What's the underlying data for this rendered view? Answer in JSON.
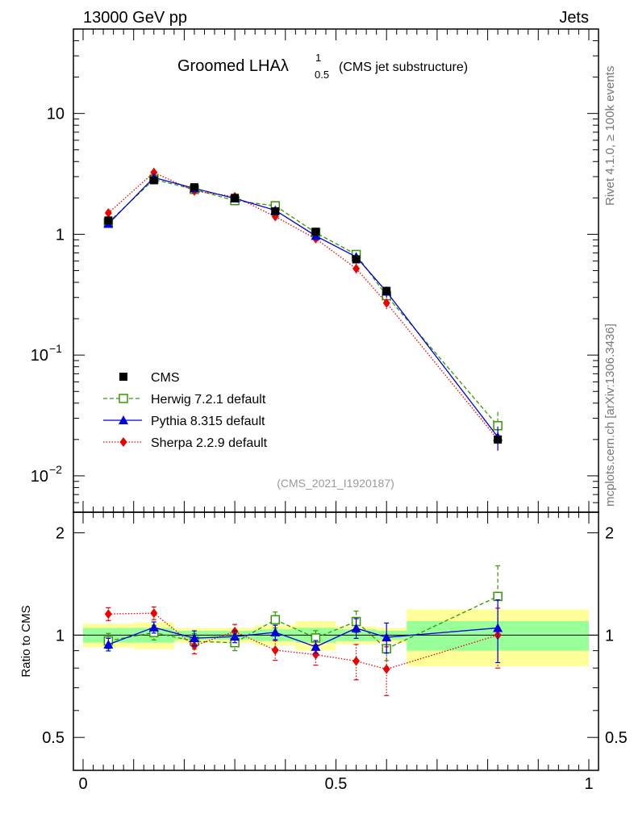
{
  "header": {
    "left": "13000 GeV pp",
    "right": "Jets"
  },
  "side_labels": {
    "rivet": "Rivet 4.1.0, ≥ 100k events",
    "mcplots": "mcplots.cern.ch [arXiv:1306.3436]"
  },
  "colors": {
    "cms": "#000000",
    "herwig": "#339900",
    "pythia": "#0000dd",
    "sherpa": "#ee0000",
    "band_inner": "#99ff99",
    "band_outer": "#ffff99"
  },
  "chart_data": {
    "type": "line",
    "title": "Groomed LHA",
    "title_symbol": "λ",
    "title_sup": "1",
    "title_sub": "0.5",
    "subtitle": "(CMS jet substructure)",
    "analysis_id": "(CMS_2021_I1920187)",
    "xlabel": "",
    "ylabel_main": "",
    "ylabel_ratio": "Ratio to CMS",
    "xlim": [
      0,
      1
    ],
    "ylim_main": [
      0.005,
      50
    ],
    "yscale_main": "log",
    "ylim_ratio": [
      0.4,
      2.3
    ],
    "yscale_ratio": "log",
    "x_ticks": [
      {
        "v": 0,
        "label": "0"
      },
      {
        "v": 0.5,
        "label": "0.5"
      },
      {
        "v": 1,
        "label": "1"
      }
    ],
    "main_y_ticks": [
      {
        "v": 10,
        "label": "10"
      },
      {
        "v": 1,
        "label": "1"
      },
      {
        "v": 0.1,
        "base": "10",
        "exp": "−1"
      },
      {
        "v": 0.01,
        "base": "10",
        "exp": "−2"
      }
    ],
    "ratio_y_ticks": [
      {
        "v": 0.5,
        "label": "0.5"
      },
      {
        "v": 1,
        "label": "1"
      },
      {
        "v": 2,
        "label": "2"
      }
    ],
    "x": [
      0.05,
      0.14,
      0.22,
      0.3,
      0.38,
      0.46,
      0.54,
      0.6,
      0.82
    ],
    "bins": [
      [
        0.0,
        0.1
      ],
      [
        0.1,
        0.18
      ],
      [
        0.18,
        0.26
      ],
      [
        0.26,
        0.34
      ],
      [
        0.34,
        0.42
      ],
      [
        0.42,
        0.5
      ],
      [
        0.5,
        0.58
      ],
      [
        0.58,
        0.64
      ],
      [
        0.64,
        1.0
      ]
    ],
    "band_outer": [
      0.08,
      0.09,
      0.05,
      0.05,
      0.07,
      0.1,
      0.06,
      0.05,
      0.19
    ],
    "band_inner": [
      0.05,
      0.05,
      0.03,
      0.03,
      0.04,
      0.05,
      0.04,
      0.03,
      0.1
    ],
    "series": [
      {
        "name": "CMS",
        "key": "cms",
        "values": [
          1.3,
          2.8,
          2.45,
          2.0,
          1.55,
          1.05,
          0.62,
          0.34,
          0.02
        ]
      },
      {
        "name": "Herwig 7.2.1 default",
        "key": "herwig",
        "values": [
          1.25,
          2.85,
          2.35,
          1.9,
          1.72,
          1.03,
          0.68,
          0.31,
          0.026
        ],
        "ratio_err": [
          0.05,
          0.05,
          0.05,
          0.05,
          0.06,
          0.05,
          0.08,
          0.07,
          0.3
        ]
      },
      {
        "name": "Pythia 8.315 default",
        "key": "pythia",
        "values": [
          1.22,
          2.95,
          2.4,
          1.98,
          1.58,
          0.97,
          0.65,
          0.335,
          0.021
        ],
        "ratio_err": [
          0.04,
          0.04,
          0.05,
          0.04,
          0.05,
          0.04,
          0.07,
          0.1,
          0.22
        ]
      },
      {
        "name": "Sherpa 2.2.9 default",
        "key": "sherpa",
        "values": [
          1.5,
          3.25,
          2.28,
          2.05,
          1.4,
          0.92,
          0.52,
          0.27,
          0.02
        ],
        "ratio_err": [
          0.05,
          0.05,
          0.05,
          0.05,
          0.06,
          0.06,
          0.1,
          0.13,
          0.2
        ]
      }
    ]
  }
}
